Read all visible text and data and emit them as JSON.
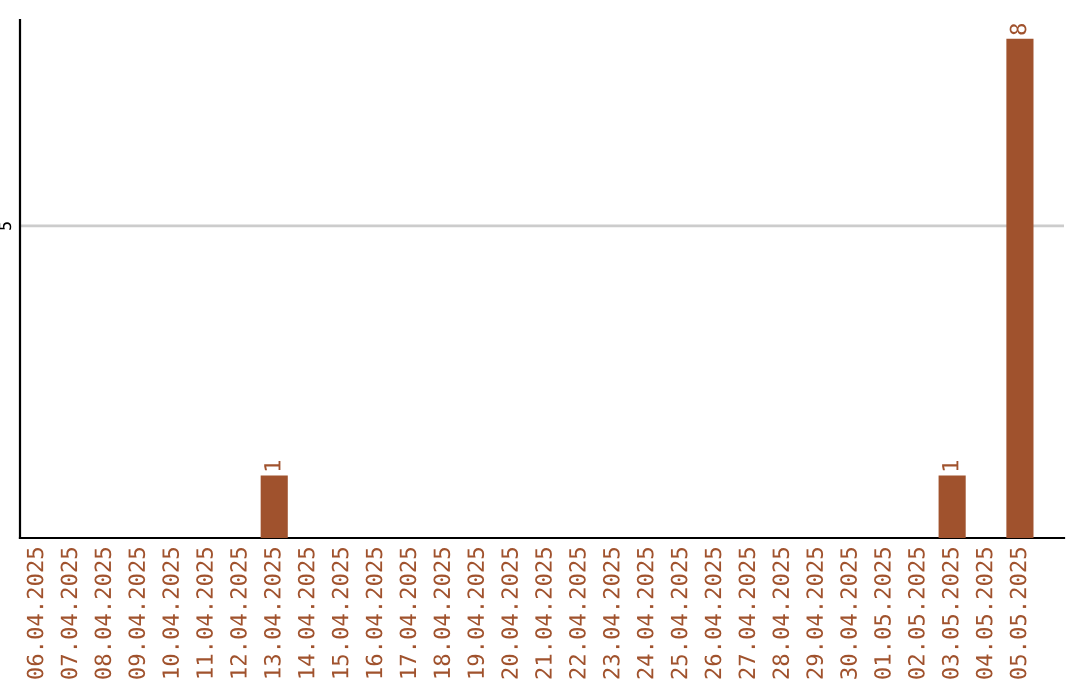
{
  "chart_data": {
    "type": "bar",
    "categories": [
      "06.04.2025",
      "07.04.2025",
      "08.04.2025",
      "09.04.2025",
      "10.04.2025",
      "11.04.2025",
      "12.04.2025",
      "13.04.2025",
      "14.04.2025",
      "15.04.2025",
      "16.04.2025",
      "17.04.2025",
      "18.04.2025",
      "19.04.2025",
      "20.04.2025",
      "21.04.2025",
      "22.04.2025",
      "23.04.2025",
      "24.04.2025",
      "25.04.2025",
      "26.04.2025",
      "27.04.2025",
      "28.04.2025",
      "29.04.2025",
      "30.04.2025",
      "01.05.2025",
      "02.05.2025",
      "03.05.2025",
      "04.05.2025",
      "05.05.2025"
    ],
    "values": [
      0,
      0,
      0,
      0,
      0,
      0,
      0,
      1,
      0,
      0,
      0,
      0,
      0,
      0,
      0,
      0,
      0,
      0,
      0,
      0,
      0,
      0,
      0,
      0,
      0,
      0,
      0,
      1,
      0,
      8
    ],
    "value_labels": [
      null,
      null,
      null,
      null,
      null,
      null,
      null,
      "1",
      null,
      null,
      null,
      null,
      null,
      null,
      null,
      null,
      null,
      null,
      null,
      null,
      null,
      null,
      null,
      null,
      null,
      null,
      null,
      "1",
      null,
      "8"
    ],
    "color": "#a0522d",
    "ylim": [
      0,
      8.3
    ],
    "yticks": [
      5
    ],
    "grid": "y"
  }
}
